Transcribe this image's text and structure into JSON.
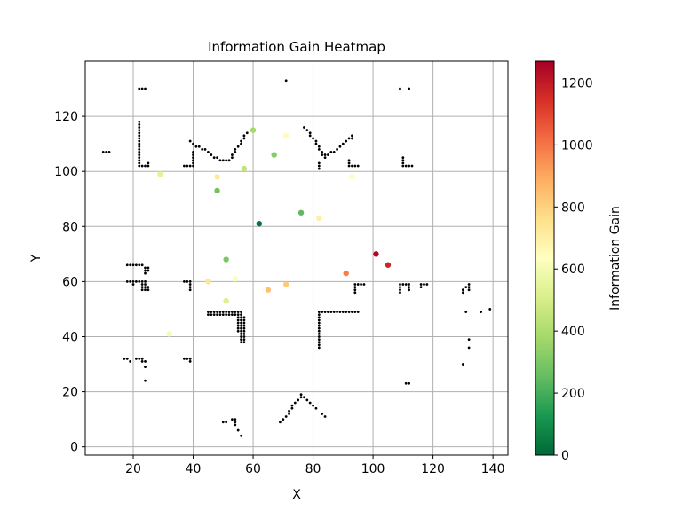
{
  "chart_data": {
    "type": "scatter",
    "title": "Information Gain Heatmap",
    "xlabel": "X",
    "ylabel": "Y",
    "xlim": [
      4,
      145
    ],
    "ylim": [
      -3,
      140
    ],
    "xticks": [
      20,
      40,
      60,
      80,
      100,
      120,
      140
    ],
    "yticks": [
      0,
      20,
      40,
      60,
      80,
      100,
      120
    ],
    "grid": true,
    "colorbar": {
      "label": "Information Gain",
      "range": [
        0,
        1270
      ],
      "ticks": [
        0,
        200,
        400,
        600,
        800,
        1000,
        1200
      ],
      "colormap": "RdYlGn_r"
    },
    "gain_points": [
      {
        "x": 60,
        "y": 115,
        "gain": 380
      },
      {
        "x": 71,
        "y": 113,
        "gain": 650
      },
      {
        "x": 67,
        "y": 106,
        "gain": 320
      },
      {
        "x": 57,
        "y": 101,
        "gain": 440
      },
      {
        "x": 29,
        "y": 99,
        "gain": 540
      },
      {
        "x": 48,
        "y": 98,
        "gain": 720
      },
      {
        "x": 93,
        "y": 98,
        "gain": 640
      },
      {
        "x": 48,
        "y": 93,
        "gain": 280
      },
      {
        "x": 76,
        "y": 85,
        "gain": 240
      },
      {
        "x": 82,
        "y": 83,
        "gain": 700
      },
      {
        "x": 62,
        "y": 81,
        "gain": 30
      },
      {
        "x": 101,
        "y": 70,
        "gain": 1250
      },
      {
        "x": 105,
        "y": 66,
        "gain": 1170
      },
      {
        "x": 51,
        "y": 68,
        "gain": 300
      },
      {
        "x": 91,
        "y": 63,
        "gain": 980
      },
      {
        "x": 45,
        "y": 60,
        "gain": 740
      },
      {
        "x": 54,
        "y": 61,
        "gain": 620
      },
      {
        "x": 71,
        "y": 59,
        "gain": 820
      },
      {
        "x": 65,
        "y": 57,
        "gain": 840
      },
      {
        "x": 51,
        "y": 53,
        "gain": 520
      },
      {
        "x": 32,
        "y": 41,
        "gain": 600
      }
    ],
    "obstacle_segments": [
      [
        [
          22,
          130
        ],
        [
          23,
          130
        ],
        [
          24,
          130
        ]
      ],
      [
        [
          71,
          133
        ]
      ],
      [
        [
          109,
          130
        ]
      ],
      [
        [
          112,
          130
        ]
      ],
      [
        [
          22,
          118
        ],
        [
          22,
          117
        ],
        [
          22,
          116
        ],
        [
          22,
          115
        ],
        [
          22,
          114
        ],
        [
          22,
          113
        ],
        [
          22,
          112
        ],
        [
          22,
          111
        ],
        [
          22,
          110
        ],
        [
          22,
          109
        ],
        [
          22,
          108
        ],
        [
          22,
          107
        ],
        [
          22,
          106
        ],
        [
          22,
          105
        ],
        [
          22,
          104
        ],
        [
          22,
          103
        ],
        [
          22,
          102
        ],
        [
          23,
          102
        ],
        [
          24,
          102
        ],
        [
          25,
          102
        ],
        [
          25,
          103
        ]
      ],
      [
        [
          10,
          107
        ],
        [
          11,
          107
        ],
        [
          12,
          107
        ]
      ],
      [
        [
          37,
          102
        ],
        [
          38,
          102
        ],
        [
          39,
          102
        ],
        [
          40,
          102
        ],
        [
          40,
          103
        ],
        [
          40,
          104
        ],
        [
          40,
          105
        ],
        [
          40,
          106
        ],
        [
          40,
          107
        ]
      ],
      [
        [
          39,
          111
        ],
        [
          40,
          110
        ],
        [
          41,
          109
        ],
        [
          42,
          109
        ],
        [
          43,
          108
        ],
        [
          44,
          108
        ],
        [
          45,
          107
        ],
        [
          46,
          106
        ],
        [
          47,
          105
        ],
        [
          48,
          105
        ],
        [
          49,
          104
        ],
        [
          50,
          104
        ],
        [
          51,
          104
        ],
        [
          52,
          104
        ],
        [
          53,
          105
        ],
        [
          53,
          106
        ],
        [
          54,
          107
        ],
        [
          54,
          108
        ],
        [
          55,
          109
        ],
        [
          56,
          110
        ],
        [
          56,
          111
        ],
        [
          57,
          112
        ],
        [
          57,
          113
        ],
        [
          58,
          114
        ]
      ],
      [
        [
          77,
          116
        ],
        [
          78,
          115
        ],
        [
          79,
          114
        ],
        [
          79,
          113
        ],
        [
          80,
          112
        ],
        [
          81,
          111
        ],
        [
          81,
          110
        ],
        [
          82,
          109
        ],
        [
          82,
          108
        ],
        [
          83,
          107
        ],
        [
          83,
          106
        ],
        [
          84,
          106
        ],
        [
          84,
          105
        ],
        [
          85,
          106
        ],
        [
          86,
          107
        ],
        [
          87,
          107
        ],
        [
          88,
          108
        ],
        [
          89,
          109
        ],
        [
          90,
          110
        ],
        [
          91,
          111
        ],
        [
          92,
          112
        ],
        [
          93,
          112
        ],
        [
          93,
          113
        ]
      ],
      [
        [
          82,
          101
        ],
        [
          82,
          102
        ],
        [
          82,
          103
        ]
      ],
      [
        [
          92,
          102
        ],
        [
          92,
          103
        ],
        [
          92,
          104
        ],
        [
          93,
          102
        ],
        [
          94,
          102
        ],
        [
          95,
          102
        ]
      ],
      [
        [
          110,
          102
        ],
        [
          110,
          103
        ],
        [
          110,
          104
        ],
        [
          110,
          105
        ],
        [
          111,
          102
        ],
        [
          112,
          102
        ],
        [
          113,
          102
        ]
      ],
      [
        [
          18,
          66
        ],
        [
          19,
          66
        ],
        [
          20,
          66
        ],
        [
          21,
          66
        ],
        [
          22,
          66
        ],
        [
          23,
          66
        ],
        [
          24,
          65
        ],
        [
          24,
          64
        ],
        [
          24,
          63
        ],
        [
          25,
          65
        ],
        [
          25,
          64
        ]
      ],
      [
        [
          18,
          60
        ],
        [
          19,
          60
        ],
        [
          20,
          59
        ],
        [
          20,
          60
        ],
        [
          21,
          60
        ],
        [
          22,
          60
        ],
        [
          23,
          60
        ],
        [
          23,
          59
        ],
        [
          23,
          58
        ],
        [
          23,
          57
        ],
        [
          24,
          60
        ],
        [
          24,
          59
        ],
        [
          24,
          58
        ],
        [
          24,
          57
        ],
        [
          25,
          58
        ],
        [
          25,
          57
        ]
      ],
      [
        [
          37,
          60
        ],
        [
          38,
          60
        ],
        [
          39,
          60
        ],
        [
          39,
          59
        ],
        [
          39,
          58
        ],
        [
          39,
          57
        ]
      ],
      [
        [
          45,
          48
        ],
        [
          45,
          49
        ],
        [
          46,
          48
        ],
        [
          46,
          49
        ],
        [
          47,
          48
        ],
        [
          47,
          49
        ],
        [
          48,
          48
        ],
        [
          48,
          49
        ],
        [
          49,
          48
        ],
        [
          49,
          49
        ],
        [
          50,
          48
        ],
        [
          50,
          49
        ],
        [
          51,
          48
        ],
        [
          51,
          49
        ],
        [
          52,
          48
        ],
        [
          52,
          49
        ],
        [
          53,
          48
        ],
        [
          53,
          49
        ],
        [
          54,
          48
        ],
        [
          54,
          49
        ],
        [
          55,
          48
        ],
        [
          55,
          49
        ],
        [
          55,
          47
        ],
        [
          55,
          46
        ],
        [
          55,
          45
        ],
        [
          55,
          44
        ],
        [
          55,
          43
        ],
        [
          55,
          42
        ],
        [
          56,
          48
        ],
        [
          56,
          49
        ],
        [
          56,
          47
        ],
        [
          56,
          46
        ],
        [
          56,
          45
        ],
        [
          56,
          44
        ],
        [
          56,
          43
        ],
        [
          56,
          42
        ],
        [
          56,
          41
        ],
        [
          56,
          40
        ],
        [
          56,
          39
        ],
        [
          56,
          38
        ],
        [
          57,
          47
        ],
        [
          57,
          46
        ],
        [
          57,
          45
        ],
        [
          57,
          44
        ],
        [
          57,
          43
        ],
        [
          57,
          42
        ],
        [
          57,
          41
        ],
        [
          57,
          40
        ],
        [
          57,
          39
        ],
        [
          57,
          38
        ]
      ],
      [
        [
          82,
          49
        ],
        [
          83,
          49
        ],
        [
          84,
          49
        ],
        [
          85,
          49
        ],
        [
          86,
          49
        ],
        [
          87,
          49
        ],
        [
          88,
          49
        ],
        [
          89,
          49
        ],
        [
          90,
          49
        ],
        [
          91,
          49
        ],
        [
          92,
          49
        ],
        [
          93,
          49
        ],
        [
          94,
          49
        ],
        [
          95,
          49
        ],
        [
          82,
          48
        ],
        [
          82,
          47
        ],
        [
          82,
          46
        ],
        [
          82,
          45
        ],
        [
          82,
          44
        ],
        [
          82,
          43
        ],
        [
          82,
          42
        ],
        [
          82,
          41
        ],
        [
          82,
          40
        ],
        [
          82,
          39
        ],
        [
          82,
          38
        ],
        [
          82,
          37
        ],
        [
          82,
          36
        ]
      ],
      [
        [
          94,
          56
        ],
        [
          94,
          57
        ],
        [
          94,
          58
        ],
        [
          94,
          59
        ],
        [
          95,
          59
        ],
        [
          96,
          59
        ],
        [
          97,
          59
        ]
      ],
      [
        [
          109,
          56
        ],
        [
          109,
          57
        ],
        [
          109,
          58
        ],
        [
          109,
          59
        ],
        [
          110,
          59
        ],
        [
          111,
          59
        ],
        [
          112,
          59
        ],
        [
          112,
          58
        ],
        [
          112,
          57
        ],
        [
          116,
          58
        ],
        [
          116,
          59
        ],
        [
          117,
          59
        ],
        [
          118,
          59
        ]
      ],
      [
        [
          130,
          56
        ],
        [
          130,
          57
        ],
        [
          131,
          58
        ],
        [
          132,
          57
        ],
        [
          132,
          58
        ],
        [
          132,
          59
        ]
      ],
      [
        [
          131,
          49
        ]
      ],
      [
        [
          136,
          49
        ]
      ],
      [
        [
          139,
          50
        ]
      ],
      [
        [
          132,
          39
        ]
      ],
      [
        [
          132,
          36
        ]
      ],
      [
        [
          130,
          30
        ]
      ],
      [
        [
          17,
          32
        ],
        [
          18,
          32
        ],
        [
          19,
          31
        ],
        [
          21,
          32
        ],
        [
          22,
          32
        ],
        [
          23,
          32
        ],
        [
          23,
          31
        ],
        [
          24,
          31
        ],
        [
          24,
          29
        ]
      ],
      [
        [
          24,
          24
        ]
      ],
      [
        [
          37,
          32
        ],
        [
          38,
          32
        ],
        [
          39,
          31
        ],
        [
          39,
          32
        ]
      ],
      [
        [
          111,
          23
        ],
        [
          112,
          23
        ]
      ],
      [
        [
          50,
          9
        ],
        [
          51,
          9
        ],
        [
          53,
          10
        ],
        [
          54,
          10
        ],
        [
          54,
          9
        ],
        [
          54,
          8
        ],
        [
          55,
          6
        ],
        [
          56,
          4
        ]
      ],
      [
        [
          69,
          9
        ],
        [
          70,
          10
        ],
        [
          71,
          11
        ],
        [
          72,
          12
        ],
        [
          72,
          13
        ],
        [
          73,
          14
        ],
        [
          73,
          15
        ],
        [
          74,
          16
        ],
        [
          75,
          17
        ],
        [
          76,
          18
        ],
        [
          76,
          19
        ],
        [
          77,
          18
        ],
        [
          78,
          17
        ],
        [
          79,
          16
        ],
        [
          80,
          15
        ],
        [
          81,
          14
        ],
        [
          83,
          12
        ],
        [
          84,
          11
        ]
      ]
    ]
  }
}
